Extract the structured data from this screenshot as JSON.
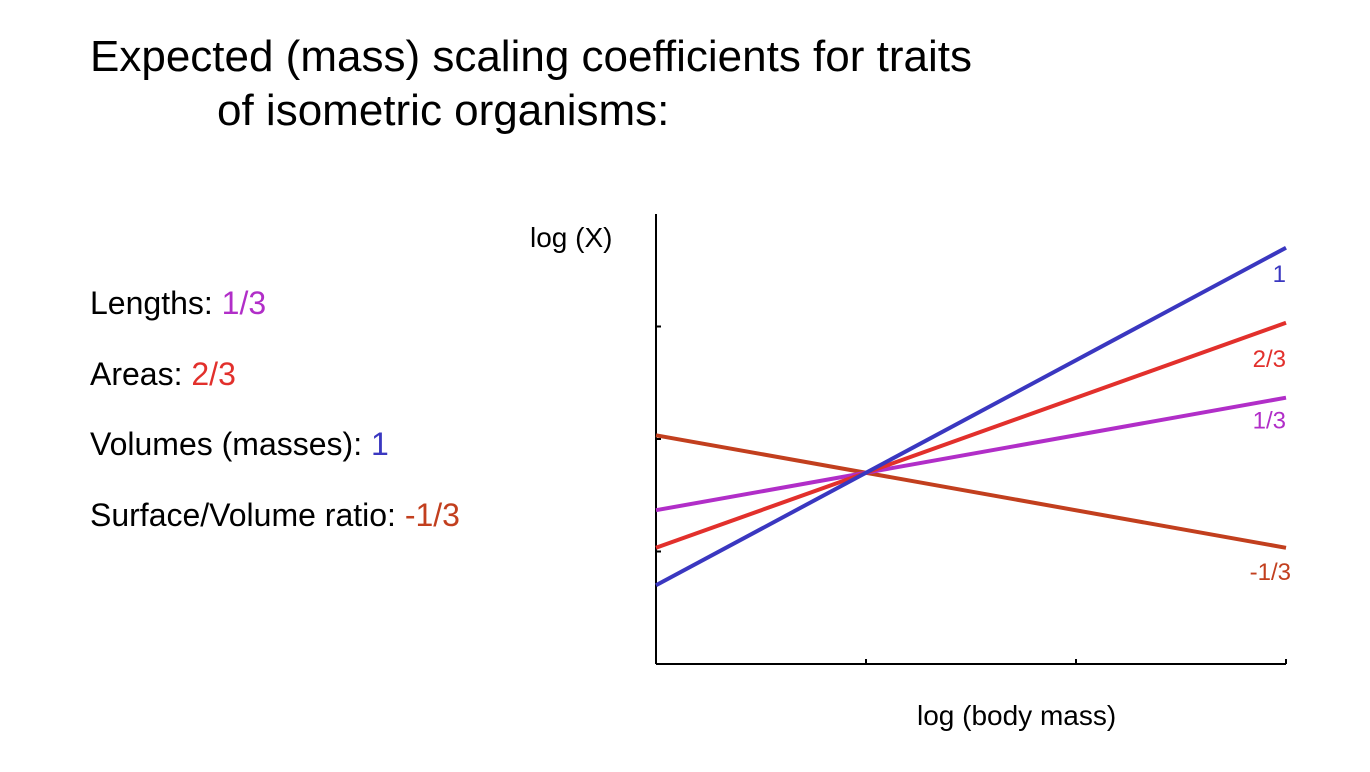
{
  "slide": {
    "title_line1": "Expected (mass) scaling coefficients for traits",
    "title_line2": "of isometric organisms:"
  },
  "legend": [
    {
      "name": "Lengths:",
      "value": "1/3",
      "color": "#b12ec8"
    },
    {
      "name": "Areas:",
      "value": "2/3",
      "color": "#e2302c"
    },
    {
      "name": "Volumes (masses):",
      "value": "1",
      "color": "#3a37c0"
    },
    {
      "name": "Surface/Volume ratio:",
      "value": "-1/3",
      "color": "#c23f1e"
    }
  ],
  "chart_data": {
    "type": "line",
    "xlabel": "log (body mass)",
    "ylabel": "log (X)",
    "xlim": [
      0,
      3
    ],
    "ylim": [
      -2,
      2
    ],
    "x_ticks": [
      1,
      2,
      3
    ],
    "y_ticks": [
      -1,
      0,
      1
    ],
    "grid": false,
    "origin": [
      1,
      -0.3
    ],
    "series": [
      {
        "name": "1",
        "slope": 1,
        "color": "#3a37c0",
        "x": [
          0,
          3
        ],
        "y": [
          -1.3,
          1.7
        ]
      },
      {
        "name": "2/3",
        "slope": 0.6667,
        "color": "#e2302c",
        "x": [
          0,
          3
        ],
        "y": [
          -0.967,
          1.033
        ]
      },
      {
        "name": "1/3",
        "slope": 0.3333,
        "color": "#b12ec8",
        "x": [
          0,
          3
        ],
        "y": [
          -0.633,
          0.367
        ]
      },
      {
        "name": "-1/3",
        "slope": -0.3333,
        "color": "#c23f1e",
        "x": [
          0,
          3
        ],
        "y": [
          0.033,
          -0.967
        ]
      }
    ]
  }
}
